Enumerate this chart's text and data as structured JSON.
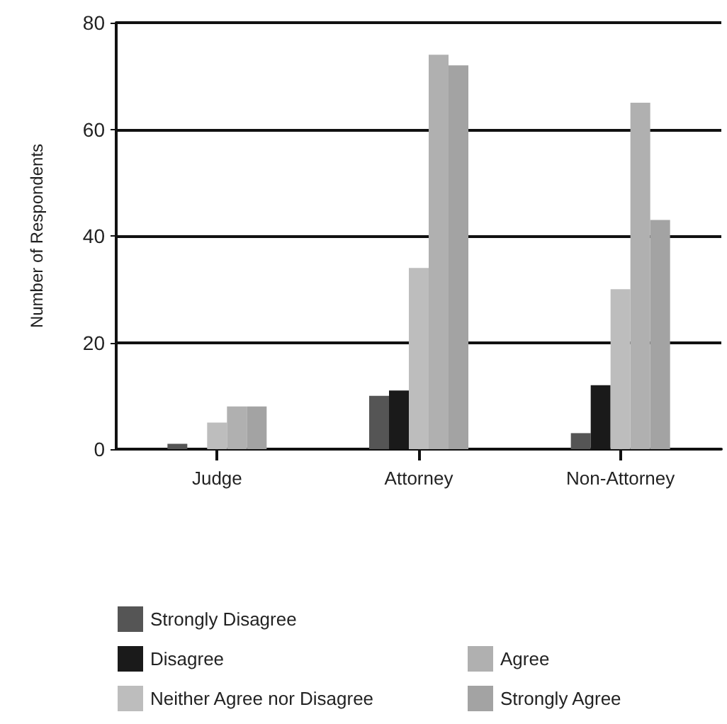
{
  "chart_data": {
    "type": "bar",
    "ylabel": "Number of Respondents",
    "categories": [
      "Judge",
      "Attorney",
      "Non-Attorney"
    ],
    "series": [
      {
        "name": "Strongly Disagree",
        "color": "#555555",
        "values": [
          1,
          10,
          3
        ]
      },
      {
        "name": "Disagree",
        "color": "#1a1a1a",
        "values": [
          0,
          11,
          12
        ]
      },
      {
        "name": "Neither Agree nor Disagree",
        "color": "#bdbdbd",
        "values": [
          5,
          34,
          30
        ]
      },
      {
        "name": "Agree",
        "color": "#b0b0b0",
        "values": [
          8,
          74,
          65
        ]
      },
      {
        "name": "Strongly Agree",
        "color": "#a3a3a3",
        "values": [
          8,
          72,
          43
        ]
      }
    ],
    "ylim": [
      0,
      80
    ],
    "yticks": [
      0,
      20,
      40,
      60,
      80
    ],
    "grid": "y",
    "legend": "bottom"
  }
}
